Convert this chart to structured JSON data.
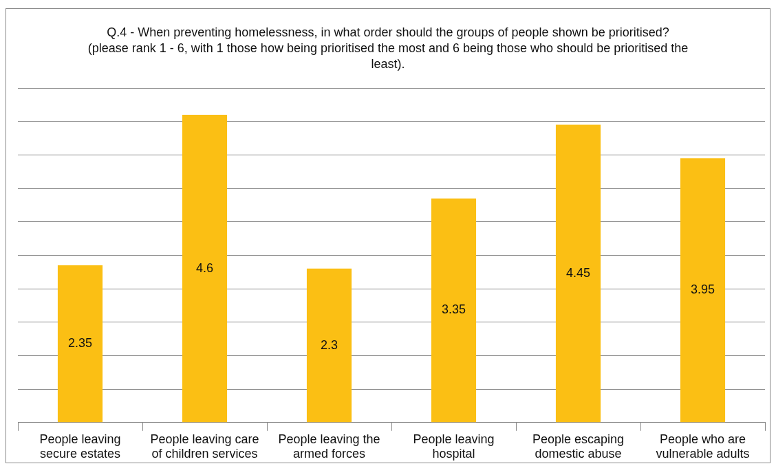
{
  "chart_data": {
    "type": "bar",
    "title": "Q.4 - When preventing homelessness, in what order should the groups of people shown be prioritised? (please rank 1 - 6, with 1  those how being prioritised the most and 6 being those who should be prioritised the least).",
    "categories": [
      "People leaving secure estates",
      "People leaving care of children services",
      "People leaving the armed forces",
      "People leaving hospital",
      "People escaping domestic abuse",
      "People who are vulnerable adults"
    ],
    "values": [
      2.35,
      4.6,
      2.3,
      3.35,
      4.45,
      3.95
    ],
    "color": "#fbbf14",
    "ylim": [
      0,
      5
    ],
    "yticks": [
      {
        "value": 0,
        "label": null
      },
      {
        "value": 0.5,
        "label": null
      },
      {
        "value": 1,
        "label": null
      },
      {
        "value": 1.5,
        "label": null
      },
      {
        "value": 2,
        "label": null
      },
      {
        "value": 2.5,
        "label": null
      },
      {
        "value": 3,
        "label": null
      },
      {
        "value": 3.5,
        "label": null
      },
      {
        "value": 4,
        "label": null
      },
      {
        "value": 4.5,
        "label": null
      },
      {
        "value": 5,
        "label": null
      }
    ],
    "grid": "y",
    "tick_labels": "x",
    "data_labels": true,
    "legend": false
  }
}
